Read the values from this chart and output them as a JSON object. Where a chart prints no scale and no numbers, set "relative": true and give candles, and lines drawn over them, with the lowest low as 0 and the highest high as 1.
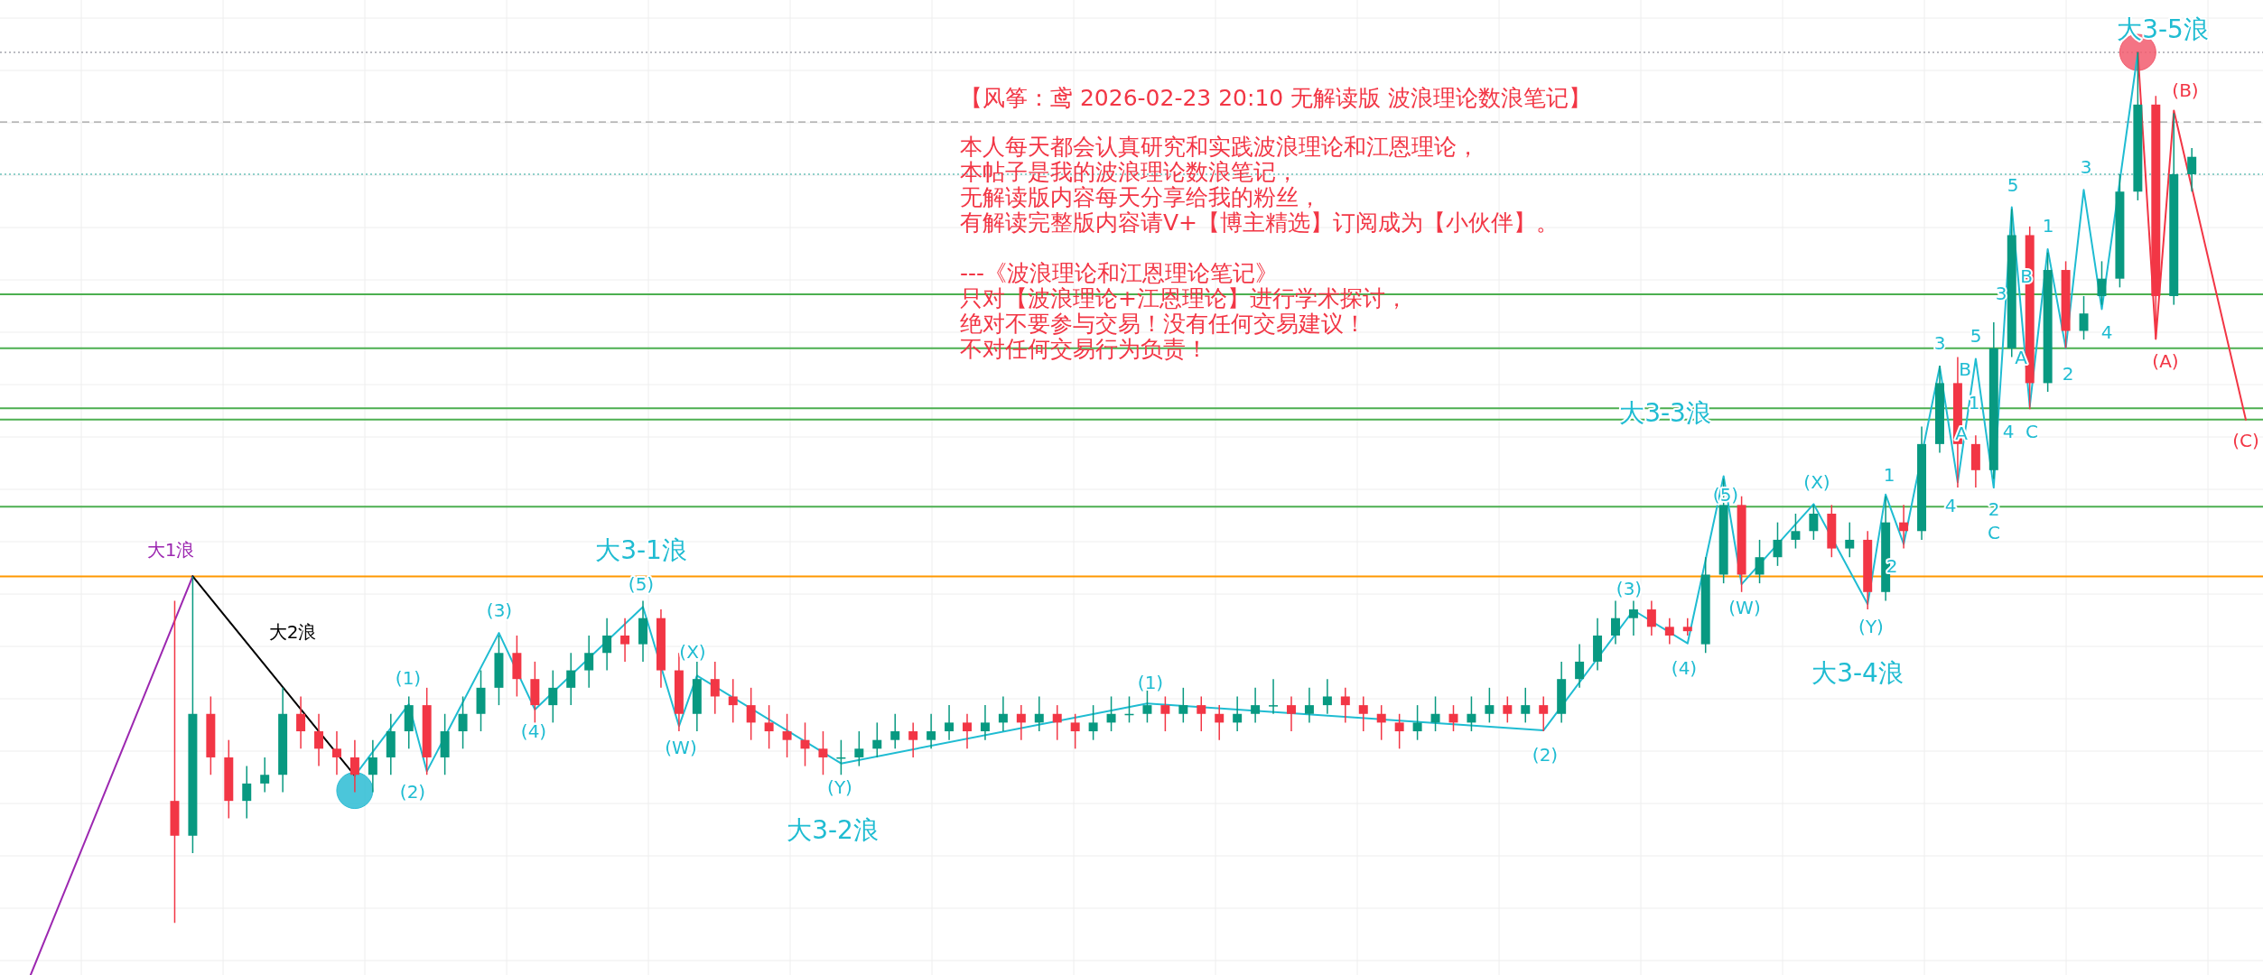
{
  "chart_data": {
    "type": "candlestick",
    "relative": true,
    "grid": true,
    "title": "【风筝：鸢 2026-02-23 20:10 无解读版  波浪理论数浪笔记】",
    "categories": [
      null,
      null,
      null,
      null,
      null,
      null,
      null,
      null,
      null,
      null,
      null,
      null,
      null,
      null,
      null,
      null,
      null,
      null,
      null,
      null,
      null,
      null,
      null,
      null,
      null,
      null,
      null,
      null,
      null,
      null,
      null,
      null,
      null,
      null,
      null,
      null,
      null,
      null,
      null,
      null,
      null,
      null,
      null,
      null,
      null,
      null,
      null,
      null,
      null,
      null,
      null,
      null,
      null,
      null,
      null,
      null,
      null,
      null,
      null,
      null,
      null,
      null,
      null,
      null,
      null,
      null,
      null,
      null,
      null,
      null,
      null,
      null,
      null,
      null,
      null,
      null,
      null,
      null,
      null,
      null,
      null,
      null,
      null,
      null,
      null,
      null,
      null,
      null,
      null,
      null,
      null,
      null,
      null,
      null,
      null,
      null,
      null,
      null,
      null,
      null,
      null,
      null,
      null,
      null,
      null,
      null,
      null,
      null,
      null,
      null,
      null,
      null,
      null,
      null,
      null,
      null,
      null,
      null,
      null,
      null,
      null,
      null,
      null,
      null,
      null
    ],
    "colors": [
      null,
      null,
      null,
      null,
      null,
      null,
      null,
      null,
      null,
      "#f23645",
      "#089981",
      "#f23645",
      "#f23645",
      "#089981",
      "#089981",
      "#089981",
      "#f23645",
      "#f23645",
      "#f23645",
      "#f23645",
      "#089981",
      "#089981",
      "#089981",
      "#f23645",
      "#089981",
      "#089981",
      "#089981",
      "#089981",
      "#f23645",
      "#f23645",
      "#089981",
      "#089981",
      "#089981",
      "#089981",
      "#f23645",
      "#089981",
      "#f23645",
      "#f23645",
      "#089981",
      "#f23645",
      "#f23645",
      "#f23645",
      "#f23645",
      "#f23645",
      "#f23645",
      "#f23645",
      "#089981",
      "#089981",
      "#089981",
      "#089981",
      "#f23645",
      "#089981",
      "#089981",
      "#f23645",
      "#089981",
      "#089981",
      "#f23645",
      "#089981",
      "#f23645",
      "#f23645",
      "#089981",
      "#089981",
      "#089981",
      "#089981",
      "#f23645",
      "#089981",
      "#f23645",
      "#f23645",
      "#089981",
      "#089981",
      "#089981",
      "#f23645",
      "#089981",
      "#089981",
      "#f23645",
      "#f23645",
      "#f23645",
      "#f23645",
      "#089981",
      "#089981",
      "#f23645",
      "#089981",
      "#089981",
      "#f23645",
      "#089981",
      "#f23645",
      "#089981",
      "#089981",
      "#089981",
      "#089981",
      "#089981",
      "#f23645",
      "#f23645",
      "#f23645",
      "#089981",
      "#089981",
      "#f23645",
      "#089981",
      "#089981",
      "#089981",
      "#089981",
      "#f23645",
      "#089981",
      "#f23645",
      "#089981",
      "#f23645",
      "#089981",
      "#089981",
      "#f23645",
      "#f23645",
      "#089981",
      "#089981",
      "#f23645",
      "#089981",
      "#f23645",
      "#089981",
      "#089981",
      "#089981",
      "#089981",
      "#f23645",
      "#089981",
      "#089981",
      null,
      null,
      null
    ],
    "ohlc": [
      null,
      null,
      null,
      null,
      null,
      null,
      null,
      null,
      null,
      [
        0.14,
        0.37,
        0.0,
        0.1
      ],
      [
        0.1,
        0.398,
        0.08,
        0.24
      ],
      [
        0.24,
        0.26,
        0.17,
        0.19
      ],
      [
        0.19,
        0.21,
        0.12,
        0.14
      ],
      [
        0.14,
        0.18,
        0.12,
        0.16
      ],
      [
        0.16,
        0.19,
        0.15,
        0.17
      ],
      [
        0.17,
        0.27,
        0.15,
        0.24
      ],
      [
        0.24,
        0.26,
        0.2,
        0.22
      ],
      [
        0.22,
        0.24,
        0.18,
        0.2
      ],
      [
        0.2,
        0.22,
        0.17,
        0.19
      ],
      [
        0.19,
        0.21,
        0.15,
        0.17
      ],
      [
        0.17,
        0.21,
        0.15,
        0.19
      ],
      [
        0.19,
        0.24,
        0.17,
        0.22
      ],
      [
        0.22,
        0.26,
        0.2,
        0.25
      ],
      [
        0.25,
        0.27,
        0.17,
        0.19
      ],
      [
        0.19,
        0.24,
        0.17,
        0.22
      ],
      [
        0.22,
        0.26,
        0.2,
        0.24
      ],
      [
        0.24,
        0.29,
        0.22,
        0.27
      ],
      [
        0.27,
        0.33,
        0.25,
        0.31
      ],
      [
        0.31,
        0.33,
        0.26,
        0.28
      ],
      [
        0.28,
        0.3,
        0.23,
        0.25
      ],
      [
        0.25,
        0.29,
        0.23,
        0.27
      ],
      [
        0.27,
        0.31,
        0.25,
        0.29
      ],
      [
        0.29,
        0.33,
        0.27,
        0.31
      ],
      [
        0.31,
        0.35,
        0.29,
        0.33
      ],
      [
        0.33,
        0.35,
        0.3,
        0.32
      ],
      [
        0.32,
        0.37,
        0.3,
        0.35
      ],
      [
        0.35,
        0.36,
        0.27,
        0.29
      ],
      [
        0.29,
        0.31,
        0.22,
        0.24
      ],
      [
        0.24,
        0.3,
        0.22,
        0.28
      ],
      [
        0.28,
        0.3,
        0.24,
        0.26
      ],
      [
        0.26,
        0.28,
        0.23,
        0.25
      ],
      [
        0.25,
        0.27,
        0.21,
        0.23
      ],
      [
        0.23,
        0.25,
        0.2,
        0.22
      ],
      [
        0.22,
        0.24,
        0.19,
        0.21
      ],
      [
        0.21,
        0.23,
        0.18,
        0.2
      ],
      [
        0.2,
        0.22,
        0.17,
        0.19
      ],
      [
        0.19,
        0.21,
        0.17,
        0.19
      ],
      [
        0.19,
        0.22,
        0.18,
        0.2
      ],
      [
        0.2,
        0.23,
        0.19,
        0.21
      ],
      [
        0.21,
        0.24,
        0.2,
        0.22
      ],
      [
        0.22,
        0.23,
        0.19,
        0.21
      ],
      [
        0.21,
        0.24,
        0.2,
        0.22
      ],
      [
        0.22,
        0.25,
        0.21,
        0.23
      ],
      [
        0.23,
        0.24,
        0.2,
        0.22
      ],
      [
        0.22,
        0.25,
        0.21,
        0.23
      ],
      [
        0.23,
        0.26,
        0.22,
        0.24
      ],
      [
        0.24,
        0.25,
        0.21,
        0.23
      ],
      [
        0.23,
        0.26,
        0.22,
        0.24
      ],
      [
        0.24,
        0.25,
        0.21,
        0.23
      ],
      [
        0.23,
        0.24,
        0.2,
        0.22
      ],
      [
        0.22,
        0.25,
        0.21,
        0.23
      ],
      [
        0.23,
        0.26,
        0.22,
        0.24
      ],
      [
        0.24,
        0.26,
        0.23,
        0.24
      ],
      [
        0.24,
        0.27,
        0.23,
        0.25
      ],
      [
        0.25,
        0.26,
        0.22,
        0.24
      ],
      [
        0.24,
        0.27,
        0.23,
        0.25
      ],
      [
        0.25,
        0.26,
        0.22,
        0.24
      ],
      [
        0.24,
        0.25,
        0.21,
        0.23
      ],
      [
        0.23,
        0.26,
        0.22,
        0.24
      ],
      [
        0.24,
        0.27,
        0.23,
        0.25
      ],
      [
        0.25,
        0.28,
        0.24,
        0.25
      ],
      [
        0.25,
        0.26,
        0.22,
        0.24
      ],
      [
        0.24,
        0.27,
        0.23,
        0.25
      ],
      [
        0.25,
        0.28,
        0.24,
        0.26
      ],
      [
        0.26,
        0.27,
        0.23,
        0.25
      ],
      [
        0.25,
        0.26,
        0.22,
        0.24
      ],
      [
        0.24,
        0.25,
        0.21,
        0.23
      ],
      [
        0.23,
        0.24,
        0.2,
        0.22
      ],
      [
        0.22,
        0.25,
        0.21,
        0.23
      ],
      [
        0.23,
        0.26,
        0.22,
        0.24
      ],
      [
        0.24,
        0.25,
        0.22,
        0.23
      ],
      [
        0.23,
        0.26,
        0.22,
        0.24
      ],
      [
        0.24,
        0.27,
        0.23,
        0.25
      ],
      [
        0.25,
        0.26,
        0.23,
        0.24
      ],
      [
        0.24,
        0.27,
        0.23,
        0.25
      ],
      [
        0.25,
        0.26,
        0.22,
        0.24
      ],
      [
        0.24,
        0.3,
        0.23,
        0.28
      ],
      [
        0.28,
        0.32,
        0.27,
        0.3
      ],
      [
        0.3,
        0.35,
        0.29,
        0.33
      ],
      [
        0.33,
        0.37,
        0.32,
        0.35
      ],
      [
        0.35,
        0.37,
        0.33,
        0.36
      ],
      [
        0.36,
        0.37,
        0.33,
        0.34
      ],
      [
        0.34,
        0.35,
        0.32,
        0.33
      ],
      [
        0.34,
        0.35,
        0.33,
        0.335
      ],
      [
        0.32,
        0.42,
        0.31,
        0.4
      ],
      [
        0.4,
        0.51,
        0.39,
        0.48
      ],
      [
        0.48,
        0.49,
        0.38,
        0.4
      ],
      [
        0.4,
        0.44,
        0.39,
        0.42
      ],
      [
        0.42,
        0.46,
        0.41,
        0.44
      ],
      [
        0.44,
        0.47,
        0.43,
        0.45
      ],
      [
        0.45,
        0.48,
        0.44,
        0.47
      ],
      [
        0.47,
        0.48,
        0.42,
        0.43
      ],
      [
        0.43,
        0.46,
        0.42,
        0.44
      ],
      [
        0.44,
        0.45,
        0.36,
        0.38
      ],
      [
        0.38,
        0.49,
        0.37,
        0.46
      ],
      [
        0.46,
        0.48,
        0.43,
        0.45
      ],
      [
        0.45,
        0.57,
        0.44,
        0.55
      ],
      [
        0.55,
        0.64,
        0.54,
        0.62
      ],
      [
        0.62,
        0.65,
        0.5,
        0.55
      ],
      [
        0.55,
        0.56,
        0.5,
        0.52
      ],
      [
        0.52,
        0.69,
        0.51,
        0.66
      ],
      [
        0.66,
        0.82,
        0.65,
        0.79
      ],
      [
        0.79,
        0.8,
        0.59,
        0.62
      ],
      [
        0.62,
        0.77,
        0.61,
        0.75
      ],
      [
        0.75,
        0.76,
        0.66,
        0.68
      ],
      [
        0.68,
        0.72,
        0.67,
        0.7
      ],
      [
        0.72,
        0.76,
        0.71,
        0.74
      ],
      [
        0.74,
        0.86,
        0.73,
        0.84
      ],
      [
        0.84,
        1.0,
        0.83,
        0.94
      ],
      [
        0.94,
        0.95,
        0.67,
        0.72
      ],
      [
        0.72,
        0.93,
        0.71,
        0.86
      ],
      [
        0.86,
        0.89,
        0.84,
        0.88
      ],
      null,
      null,
      null
    ],
    "series": [
      {
        "type": "line",
        "color": "#9c27b0",
        "values": [
          null,
          -0.06,
          null,
          null,
          null,
          null,
          null,
          null,
          null,
          null,
          0.398,
          null,
          null,
          null,
          null,
          null,
          null,
          null,
          null,
          null,
          null,
          null,
          null,
          null,
          null,
          null,
          null,
          null,
          null,
          null,
          null,
          null,
          null,
          null,
          null,
          null,
          null,
          null,
          null,
          null,
          null,
          null,
          null,
          null,
          null,
          null,
          null,
          null,
          null,
          null,
          null,
          null,
          null,
          null,
          null,
          null,
          null,
          null,
          null,
          null,
          null,
          null,
          null,
          null,
          null,
          null,
          null,
          null,
          null,
          null,
          null,
          null,
          null,
          null,
          null,
          null,
          null,
          null,
          null,
          null,
          null,
          null,
          null,
          null,
          null,
          null,
          null,
          null,
          null,
          null,
          null,
          null,
          null,
          null,
          null,
          null,
          null,
          null,
          null,
          null,
          null,
          null,
          null,
          null,
          null,
          null,
          null,
          null,
          null,
          null,
          null,
          null,
          null,
          null,
          null,
          null,
          null,
          null,
          null,
          null,
          null,
          null,
          null,
          null,
          null
        ],
        "line_style": "solid"
      },
      {
        "type": "line",
        "color": "#000000",
        "values": [
          null,
          null,
          null,
          null,
          null,
          null,
          null,
          null,
          null,
          null,
          0.398,
          null,
          null,
          null,
          null,
          null,
          null,
          null,
          null,
          0.169,
          null,
          null,
          null,
          null,
          null,
          null,
          null,
          null,
          null,
          null,
          null,
          null,
          null,
          null,
          null,
          null,
          null,
          null,
          null,
          null,
          null,
          null,
          null,
          null,
          null,
          null,
          null,
          null,
          null,
          null,
          null,
          null,
          null,
          null,
          null,
          null,
          null,
          null,
          null,
          null,
          null,
          null,
          null,
          null,
          null,
          null,
          null,
          null,
          null,
          null,
          null,
          null,
          null,
          null,
          null,
          null,
          null,
          null,
          null,
          null,
          null,
          null,
          null,
          null,
          null,
          null,
          null,
          null,
          null,
          null,
          null,
          null,
          null,
          null,
          null,
          null,
          null,
          null,
          null,
          null,
          null,
          null,
          null,
          null,
          null,
          null,
          null,
          null,
          null,
          null,
          null,
          null,
          null,
          null,
          null,
          null,
          null,
          null,
          null,
          null,
          null,
          null,
          null,
          null,
          null
        ]
      },
      {
        "type": "line",
        "color": "#1fbcd2",
        "values": [
          null,
          null,
          null,
          null,
          null,
          null,
          null,
          null,
          null,
          null,
          null,
          null,
          null,
          null,
          null,
          null,
          null,
          null,
          null,
          0.169,
          null,
          null,
          0.251,
          0.174,
          null,
          null,
          null,
          0.333,
          null,
          0.245,
          null,
          null,
          null,
          null,
          null,
          0.363,
          null,
          0.226,
          0.284,
          null,
          null,
          null,
          null,
          null,
          null,
          null,
          0.183,
          null,
          null,
          null,
          null,
          null,
          null,
          null,
          null,
          null,
          null,
          null,
          null,
          null,
          null,
          null,
          null,
          0.252,
          null,
          null,
          null,
          null,
          null,
          null,
          null,
          null,
          null,
          null,
          null,
          null,
          null,
          null,
          null,
          null,
          null,
          null,
          null,
          null,
          null,
          0.221,
          null,
          null,
          null,
          null,
          0.359,
          null,
          null,
          0.321,
          null,
          0.513,
          0.389,
          null,
          null,
          null,
          0.481,
          null,
          null,
          0.366,
          0.492,
          0.435,
          null,
          0.639,
          0.506,
          0.648,
          0.5,
          0.822,
          0.593,
          0.774,
          0.66,
          0.842,
          0.705,
          null,
          1.0,
          null,
          null,
          null,
          null,
          null,
          null
        ]
      },
      {
        "type": "line",
        "color": "#f23645",
        "values": [
          null,
          null,
          null,
          null,
          null,
          null,
          null,
          null,
          null,
          null,
          null,
          null,
          null,
          null,
          null,
          null,
          null,
          null,
          null,
          null,
          null,
          null,
          null,
          null,
          null,
          null,
          null,
          null,
          null,
          null,
          null,
          null,
          null,
          null,
          null,
          null,
          null,
          null,
          null,
          null,
          null,
          null,
          null,
          null,
          null,
          null,
          null,
          null,
          null,
          null,
          null,
          null,
          null,
          null,
          null,
          null,
          null,
          null,
          null,
          null,
          null,
          null,
          null,
          null,
          null,
          null,
          null,
          null,
          null,
          null,
          null,
          null,
          null,
          null,
          null,
          null,
          null,
          null,
          null,
          null,
          null,
          null,
          null,
          null,
          null,
          null,
          null,
          null,
          null,
          null,
          null,
          null,
          null,
          null,
          null,
          null,
          null,
          null,
          null,
          null,
          null,
          null,
          null,
          null,
          null,
          null,
          null,
          null,
          null,
          null,
          null,
          null,
          null,
          null,
          null,
          null,
          null,
          null,
          1.0,
          0.671,
          0.933,
          null,
          null,
          null,
          0.578
        ]
      },
      {
        "type": "scatter",
        "marker": "circle",
        "color": "#2bbcd4",
        "values": [
          null,
          null,
          null,
          null,
          null,
          null,
          null,
          null,
          null,
          null,
          null,
          null,
          null,
          null,
          null,
          null,
          null,
          null,
          null,
          0.152,
          null,
          null,
          null,
          null,
          null,
          null,
          null,
          null,
          null,
          null,
          null,
          null,
          null,
          null,
          null,
          null,
          null,
          null,
          null,
          null,
          null,
          null,
          null,
          null,
          null,
          null,
          null,
          null,
          null,
          null,
          null,
          null,
          null,
          null,
          null,
          null,
          null,
          null,
          null,
          null,
          null,
          null,
          null,
          null,
          null,
          null,
          null,
          null,
          null,
          null,
          null,
          null,
          null,
          null,
          null,
          null,
          null,
          null,
          null,
          null,
          null,
          null,
          null,
          null,
          null,
          null,
          null,
          null,
          null,
          null,
          null,
          null,
          null,
          null,
          null,
          null,
          null,
          null,
          null,
          null,
          null,
          null,
          null,
          null,
          null,
          null,
          null,
          null,
          null,
          null,
          null,
          null,
          null,
          null,
          null,
          null,
          null,
          null,
          null,
          null,
          null,
          null,
          null,
          null,
          null
        ]
      },
      {
        "type": "scatter",
        "marker": "circle",
        "color": "#f25c6e",
        "values": [
          null,
          null,
          null,
          null,
          null,
          null,
          null,
          null,
          null,
          null,
          null,
          null,
          null,
          null,
          null,
          null,
          null,
          null,
          null,
          null,
          null,
          null,
          null,
          null,
          null,
          null,
          null,
          null,
          null,
          null,
          null,
          null,
          null,
          null,
          null,
          null,
          null,
          null,
          null,
          null,
          null,
          null,
          null,
          null,
          null,
          null,
          null,
          null,
          null,
          null,
          null,
          null,
          null,
          null,
          null,
          null,
          null,
          null,
          null,
          null,
          null,
          null,
          null,
          null,
          null,
          null,
          null,
          null,
          null,
          null,
          null,
          null,
          null,
          null,
          null,
          null,
          null,
          null,
          null,
          null,
          null,
          null,
          null,
          null,
          null,
          null,
          null,
          null,
          null,
          null,
          null,
          null,
          null,
          null,
          null,
          null,
          null,
          null,
          null,
          null,
          null,
          null,
          null,
          null,
          null,
          null,
          null,
          null,
          null,
          null,
          null,
          null,
          null,
          null,
          null,
          null,
          null,
          null,
          1.0,
          null,
          null,
          null,
          null,
          null,
          null
        ]
      }
    ],
    "ref_lines": [
      {
        "axis": "y",
        "value": 0.398,
        "color": "#ff9800",
        "line_style": "solid"
      },
      {
        "axis": "y",
        "value": 0.722,
        "color": "#4caf50",
        "line_style": "solid"
      },
      {
        "axis": "y",
        "value": 0.66,
        "color": "#4caf50",
        "line_style": "solid"
      },
      {
        "axis": "y",
        "value": 0.591,
        "color": "#4caf50",
        "line_style": "solid"
      },
      {
        "axis": "y",
        "value": 0.578,
        "color": "#4caf50",
        "line_style": "solid"
      },
      {
        "axis": "y",
        "value": 0.478,
        "color": "#4caf50",
        "line_style": "solid"
      },
      {
        "axis": "y",
        "value": 1.0,
        "color": "#787b86",
        "line_style": "dotted"
      },
      {
        "axis": "y",
        "value": 0.92,
        "color": "#9e9e9e",
        "line_style": "dashed"
      },
      {
        "axis": "y",
        "value": 0.86,
        "color": "#26a69a",
        "line_style": "dotted"
      }
    ],
    "annotations": [
      "本人每天都会认真研究和实践波浪理论和江恩理论，",
      "本帖子是我的波浪理论数浪笔记，",
      "无解读版内容每天分享给我的粉丝，",
      "有解读完整版内容请V+【博主精选】订阅成为【小伙伴】。",
      "---《波浪理论和江恩理论笔记》",
      "只对【波浪理论+江恩理论】进行学术探讨，",
      "绝对不要参与交易！没有任何交易建议！",
      "不对任何交易行为负责！",
      "大1浪",
      "大2浪",
      "大3-1浪",
      "(1)",
      "(2)",
      "(3)",
      "(4)",
      "(5)",
      "(X)",
      "(W)",
      "(Y)",
      "大3-2浪",
      "(1)",
      "(2)",
      "(3)",
      "(4)",
      "(5)",
      "(W)",
      "(X)",
      "(Y)",
      "大3-3浪",
      "大3-4浪",
      "1",
      "2",
      "3",
      "4",
      "5",
      "A",
      "B",
      "C",
      "2",
      "1",
      "4",
      "C",
      "3",
      "5",
      "B",
      "A",
      "1",
      "2",
      "3",
      "4",
      "大3-5浪",
      "(A)",
      "(B)",
      "(C)"
    ]
  }
}
